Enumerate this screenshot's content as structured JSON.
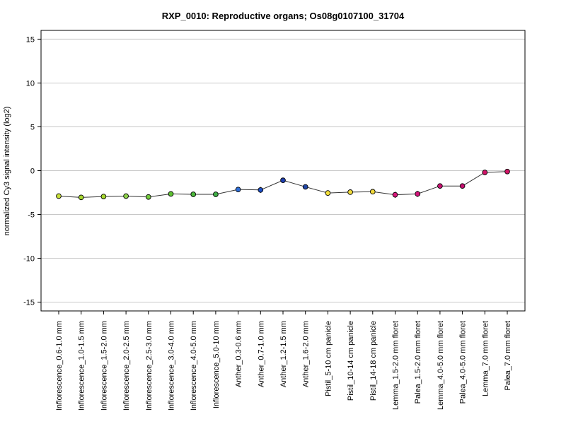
{
  "chart_data": {
    "type": "line",
    "title": "RXP_0010: Reproductive organs; Os08g0107100_31704",
    "xlabel": "",
    "ylabel": "normalized Cy3 signal intensity (log2)",
    "ylim": [
      -16,
      16
    ],
    "yticks": [
      -15,
      -10,
      -5,
      0,
      5,
      10,
      15
    ],
    "grid": true,
    "categories": [
      "Inflorescence_0.6-1.0 mm",
      "Inflorescence_1.0-1.5 mm",
      "Inflorescence_1.5-2.0 mm",
      "Inflorescence_2.0-2.5 mm",
      "Inflorescence_2.5-3.0 mm",
      "Inflorescence_3.0-4.0 mm",
      "Inflorescence_4.0-5.0 mm",
      "Inflorescence_5.0-10 mm",
      "Anther_0.3-0.6 mm",
      "Anther_0.7-1.0 mm",
      "Anther_1.2-1.5 mm",
      "Anther_1.6-2.0 mm",
      "Pistil_5-10 cm panicle",
      "Pistil_10-14 cm panicle",
      "Pistil_14-18 cm panicle",
      "Lemma_1.5-2.0 mm floret",
      "Palea_1.5-2.0 mm floret",
      "Lemma_4.0-5.0 mm floret",
      "Palea_4.0-5.0 mm floret",
      "Lemma_7.0 mm floret",
      "Palea_7.0 mm floret"
    ],
    "values": [
      -2.9,
      -3.05,
      -2.95,
      -2.9,
      -3.0,
      -2.65,
      -2.7,
      -2.7,
      -2.15,
      -2.2,
      -1.1,
      -1.85,
      -2.55,
      -2.45,
      -2.4,
      -2.75,
      -2.65,
      -1.75,
      -1.75,
      -0.2,
      -0.1
    ],
    "errors": [
      0.25,
      0.15,
      0.1,
      0.1,
      0.12,
      0.12,
      0.1,
      0.1,
      0.12,
      0.35,
      0.12,
      0.12,
      0.12,
      0.12,
      0.1,
      0.35,
      0.35,
      0.12,
      0.15,
      0.1,
      0.1
    ],
    "colors": [
      "#c8e03a",
      "#a6d82e",
      "#a6d82e",
      "#8ed34a",
      "#74cc3f",
      "#5ec232",
      "#4cb83c",
      "#3fae46",
      "#2d6ed8",
      "#1e50c8",
      "#1f3fb0",
      "#2348a8",
      "#f4e03a",
      "#f2dc3c",
      "#f0d83a",
      "#d8187a",
      "#d4147a",
      "#c81272",
      "#c41070",
      "#d01468",
      "#d21466"
    ]
  }
}
